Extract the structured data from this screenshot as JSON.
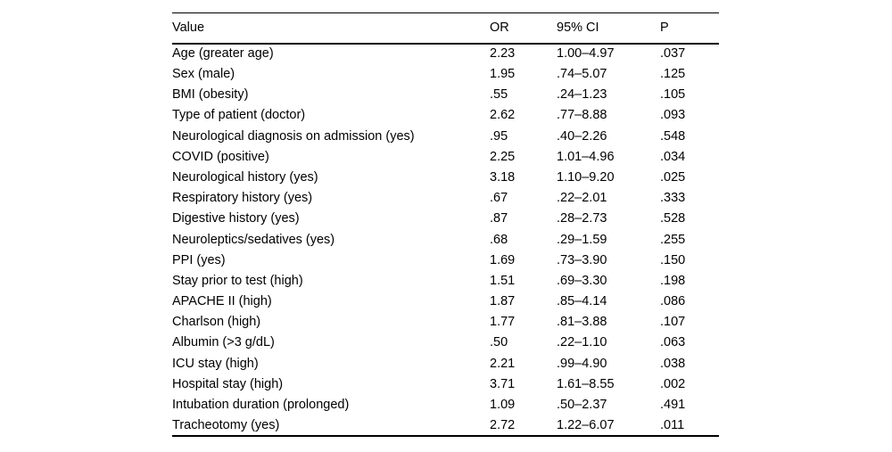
{
  "colors": {
    "background": "#ffffff",
    "text": "#000000",
    "rule": "#000000"
  },
  "table": {
    "columns": [
      "Value",
      "OR",
      "95% CI",
      "P"
    ],
    "rows": [
      {
        "value": "Age (greater age)",
        "or": "2.23",
        "ci": "1.00–4.97",
        "p": ".037",
        "significant": true
      },
      {
        "value": "Sex (male)",
        "or": "1.95",
        "ci": ".74–5.07",
        "p": ".125",
        "significant": false
      },
      {
        "value": "BMI (obesity)",
        "or": ".55",
        "ci": ".24–1.23",
        "p": ".105",
        "significant": false
      },
      {
        "value": "Type of patient (doctor)",
        "or": "2.62",
        "ci": ".77–8.88",
        "p": ".093",
        "significant": false
      },
      {
        "value": "Neurological diagnosis on admission (yes)",
        "or": ".95",
        "ci": ".40–2.26",
        "p": ".548",
        "significant": false
      },
      {
        "value": "COVID (positive)",
        "or": "2.25",
        "ci": "1.01–4.96",
        "p": ".034",
        "significant": true
      },
      {
        "value": "Neurological history (yes)",
        "or": "3.18",
        "ci": "1.10–9.20",
        "p": ".025",
        "significant": true
      },
      {
        "value": "Respiratory history (yes)",
        "or": ".67",
        "ci": ".22–2.01",
        "p": ".333",
        "significant": false
      },
      {
        "value": "Digestive history (yes)",
        "or": ".87",
        "ci": ".28–2.73",
        "p": ".528",
        "significant": false
      },
      {
        "value": "Neuroleptics/sedatives (yes)",
        "or": ".68",
        "ci": ".29–1.59",
        "p": ".255",
        "significant": false
      },
      {
        "value": "PPI (yes)",
        "or": "1.69",
        "ci": ".73–3.90",
        "p": ".150",
        "significant": false
      },
      {
        "value": "Stay prior to test (high)",
        "or": "1.51",
        "ci": ".69–3.30",
        "p": ".198",
        "significant": false
      },
      {
        "value": "APACHE II (high)",
        "or": "1.87",
        "ci": ".85–4.14",
        "p": ".086",
        "significant": false
      },
      {
        "value": "Charlson (high)",
        "or": "1.77",
        "ci": ".81–3.88",
        "p": ".107",
        "significant": false
      },
      {
        "value": "Albumin (>3 g/dL)",
        "or": ".50",
        "ci": ".22–1.10",
        "p": ".063",
        "significant": false
      },
      {
        "value": "ICU stay (high)",
        "or": "2.21",
        "ci": ".99–4.90",
        "p": ".038",
        "significant": true
      },
      {
        "value": "Hospital stay (high)",
        "or": "3.71",
        "ci": "1.61–8.55",
        "p": ".002",
        "significant": true
      },
      {
        "value": "Intubation duration (prolonged)",
        "or": "1.09",
        "ci": ".50–2.37",
        "p": ".491",
        "significant": false
      },
      {
        "value": "Tracheotomy (yes)",
        "or": "2.72",
        "ci": "1.22–6.07",
        "p": ".011",
        "significant": true
      }
    ]
  }
}
